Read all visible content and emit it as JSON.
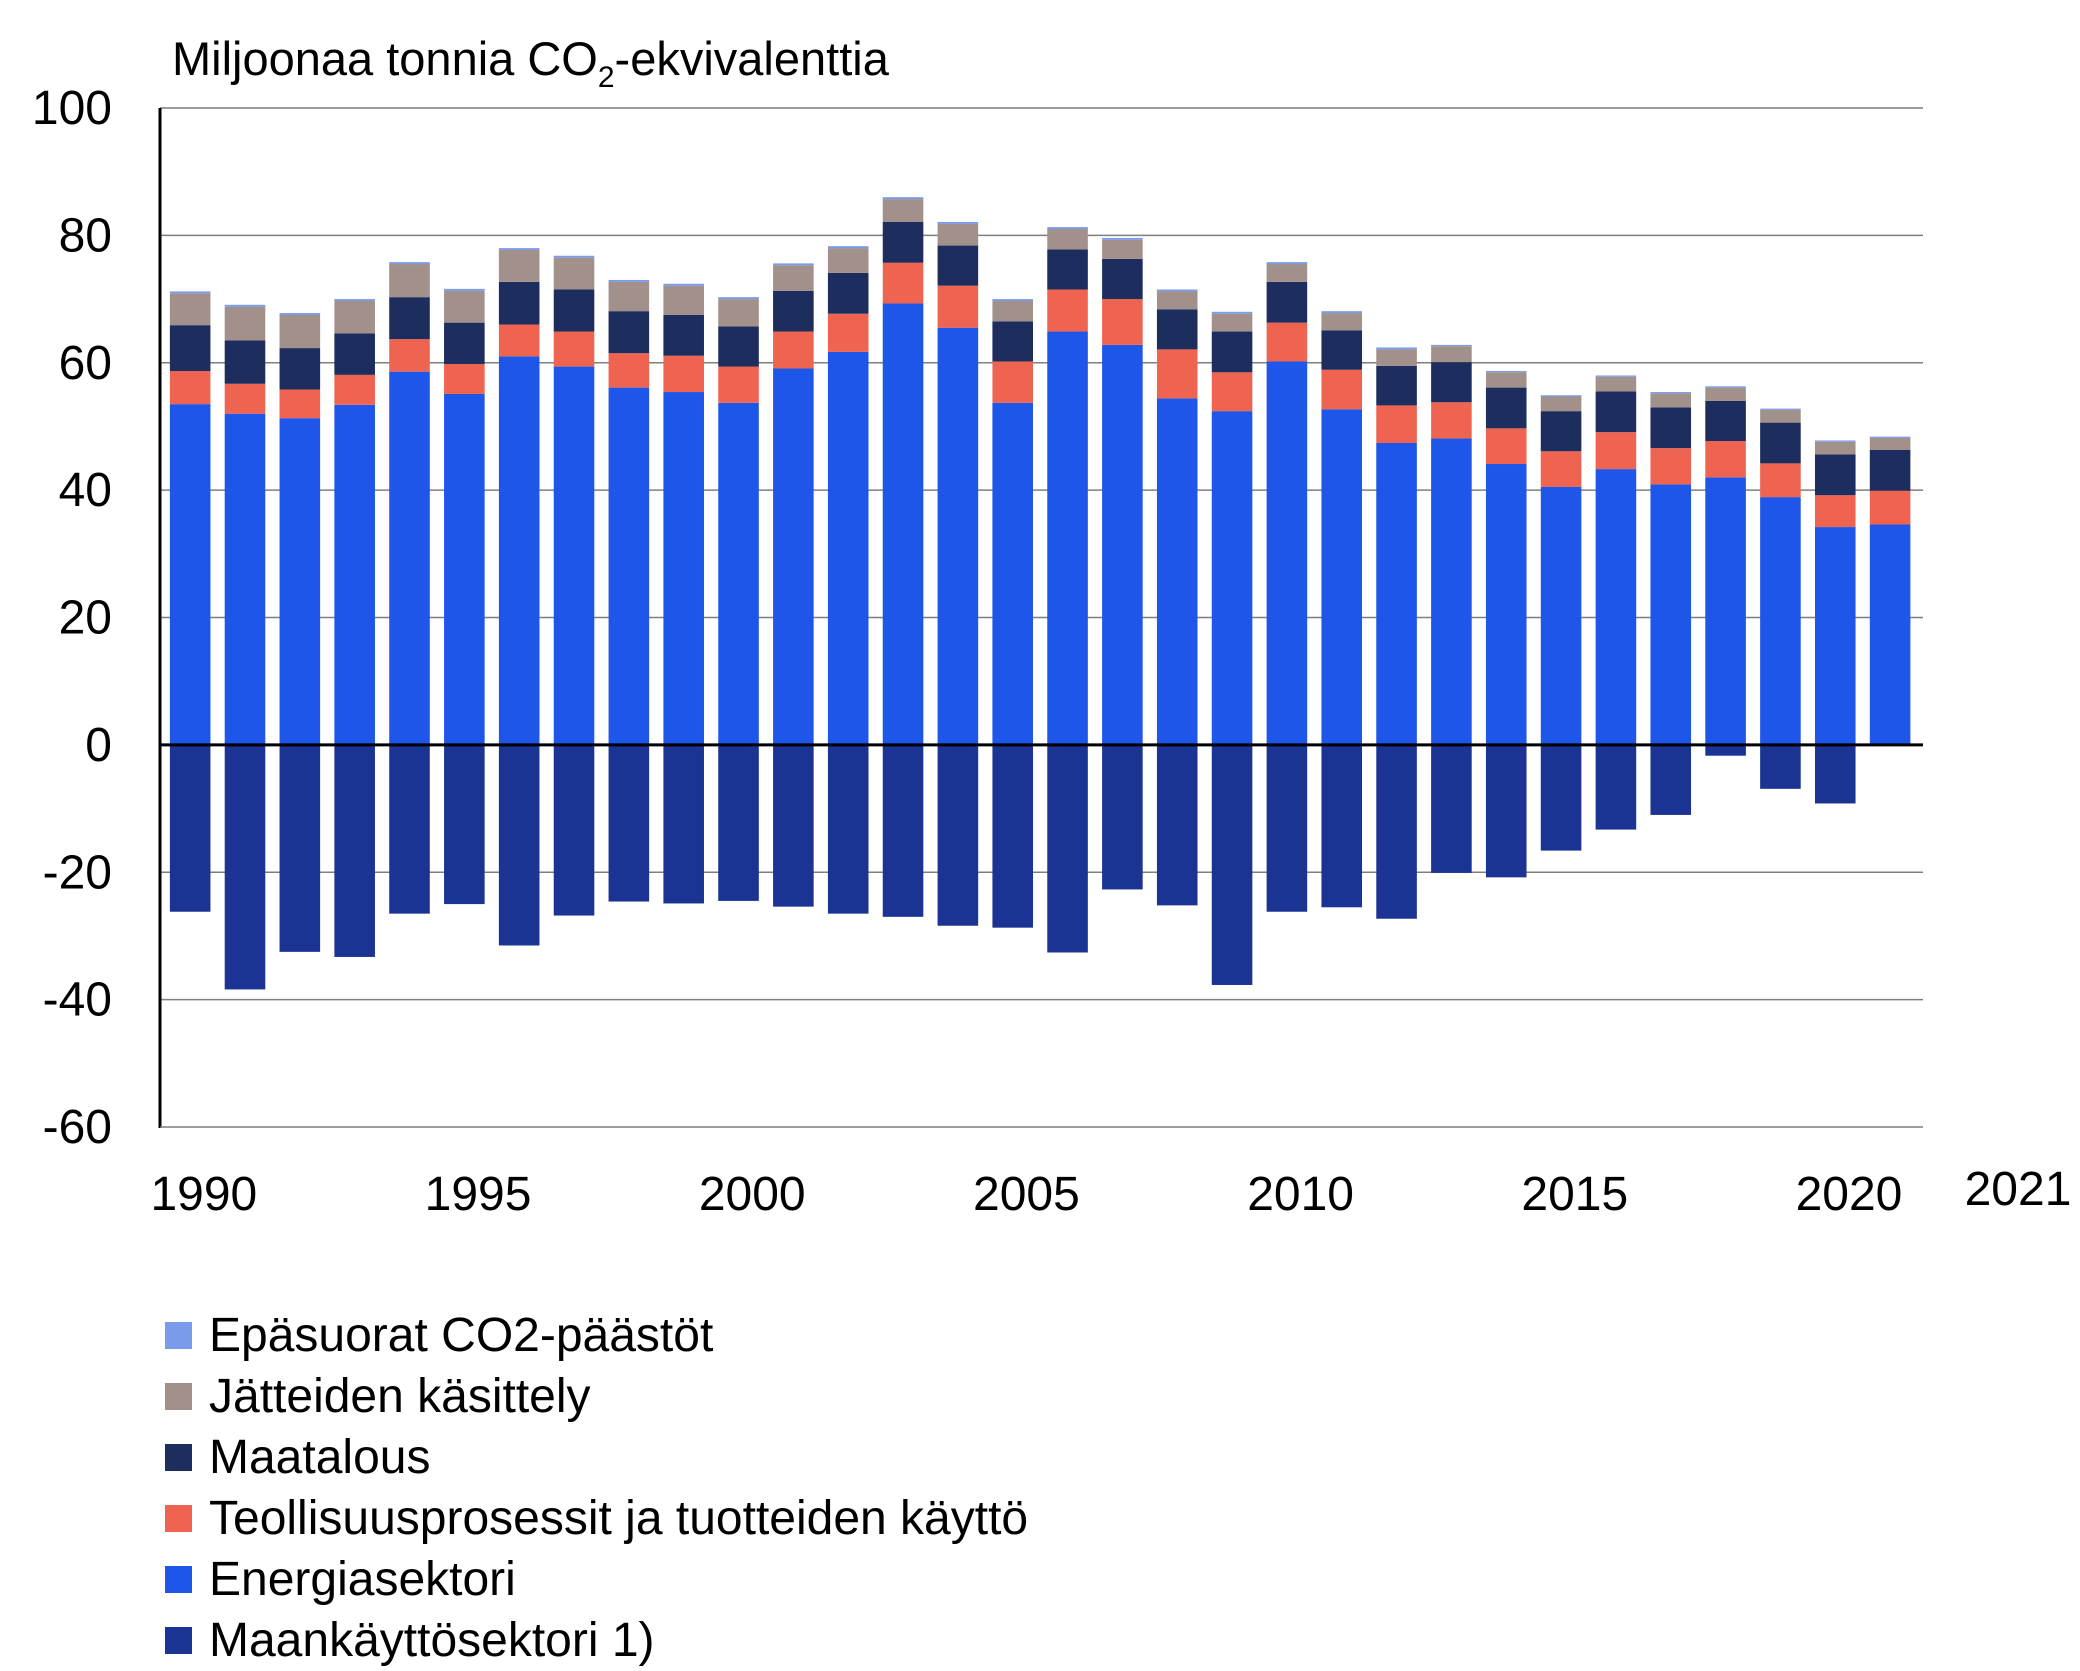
{
  "chart_data": {
    "type": "bar",
    "stacked": true,
    "title_prefix": "Miljoonaa tonnia CO",
    "title_sub": "2",
    "title_suffix": "-ekvivalenttia",
    "ylim": [
      -60,
      100
    ],
    "yticks": [
      -60,
      -40,
      -20,
      0,
      20,
      40,
      60,
      80,
      100
    ],
    "ytick_labels": [
      "-60",
      "-40",
      "-20",
      "0",
      "20",
      "40",
      "60",
      "80",
      "100"
    ],
    "xtick_labels": [
      "1990",
      "1995",
      "2000",
      "2005",
      "2010",
      "2015",
      "2020",
      "2021"
    ],
    "grid": true,
    "legend_position": "bottom",
    "categories": [
      "1990",
      "1991",
      "1992",
      "1993",
      "1994",
      "1995",
      "1996",
      "1997",
      "1998",
      "1999",
      "2000",
      "2001",
      "2002",
      "2003",
      "2004",
      "2005",
      "2006",
      "2007",
      "2008",
      "2009",
      "2010",
      "2011",
      "2012",
      "2013",
      "2014",
      "2015",
      "2016",
      "2017",
      "2018",
      "2019",
      "2020",
      "2021"
    ],
    "series": [
      {
        "name": "Epäsuorat CO2-päästöt",
        "color": "#7a9aea",
        "values": [
          0.3,
          0.3,
          0.3,
          0.3,
          0.3,
          0.3,
          0.3,
          0.3,
          0.3,
          0.3,
          0.3,
          0.3,
          0.3,
          0.3,
          0.3,
          0.3,
          0.3,
          0.3,
          0.3,
          0.3,
          0.3,
          0.3,
          0.3,
          0.2,
          0.2,
          0.2,
          0.2,
          0.2,
          0.2,
          0.2,
          0.2,
          0.2
        ]
      },
      {
        "name": "Jätteiden käsittely",
        "color": "#a2918a",
        "values": [
          5.0,
          5.3,
          5.2,
          5.1,
          5.2,
          5.0,
          5.0,
          5.0,
          4.6,
          4.6,
          4.3,
          4.0,
          3.9,
          3.6,
          3.4,
          3.2,
          3.2,
          3.0,
          2.8,
          2.8,
          2.8,
          2.7,
          2.6,
          2.5,
          2.4,
          2.3,
          2.3,
          2.2,
          2.1,
          2.0,
          2.0,
          1.9
        ]
      },
      {
        "name": "Maatalous",
        "color": "#1c2d5e",
        "values": [
          7.2,
          6.8,
          6.5,
          6.5,
          6.6,
          6.5,
          6.7,
          6.6,
          6.6,
          6.4,
          6.3,
          6.4,
          6.4,
          6.4,
          6.3,
          6.3,
          6.3,
          6.3,
          6.3,
          6.4,
          6.4,
          6.2,
          6.2,
          6.3,
          6.4,
          6.3,
          6.4,
          6.4,
          6.3,
          6.4,
          6.4,
          6.4
        ]
      },
      {
        "name": "Teollisuusprosessit ja tuotteiden käyttö",
        "color": "#ef6450",
        "values": [
          5.2,
          4.7,
          4.5,
          4.7,
          5.1,
          4.7,
          5.0,
          5.5,
          5.4,
          5.7,
          5.7,
          5.8,
          6.0,
          6.4,
          6.6,
          6.5,
          6.6,
          7.2,
          7.7,
          6.1,
          6.1,
          6.2,
          5.9,
          5.7,
          5.6,
          5.6,
          5.8,
          5.7,
          5.7,
          5.3,
          5.0,
          5.3
        ]
      },
      {
        "name": "Energiasektori",
        "color": "#1d56e8",
        "values": [
          53.5,
          52.0,
          51.3,
          53.4,
          58.6,
          55.1,
          61.0,
          59.4,
          56.1,
          55.4,
          53.7,
          59.1,
          61.7,
          69.3,
          65.5,
          53.7,
          64.9,
          62.8,
          54.4,
          52.4,
          60.2,
          52.7,
          47.4,
          48.1,
          44.1,
          40.5,
          43.3,
          40.9,
          42.0,
          38.9,
          34.2,
          34.6
        ]
      },
      {
        "name": "Maankäyttösektori 1)",
        "color": "#1b3494",
        "values": [
          -26.2,
          -38.4,
          -32.5,
          -33.3,
          -26.5,
          -25.0,
          -31.5,
          -26.8,
          -24.6,
          -24.9,
          -24.5,
          -25.4,
          -26.5,
          -27.0,
          -28.4,
          -28.7,
          -32.6,
          -22.7,
          -25.2,
          -37.7,
          -26.2,
          -25.5,
          -27.3,
          -20.1,
          -20.8,
          -16.6,
          -13.3,
          -11.0,
          -1.7,
          -6.9,
          -9.2,
          0.0
        ]
      }
    ]
  }
}
